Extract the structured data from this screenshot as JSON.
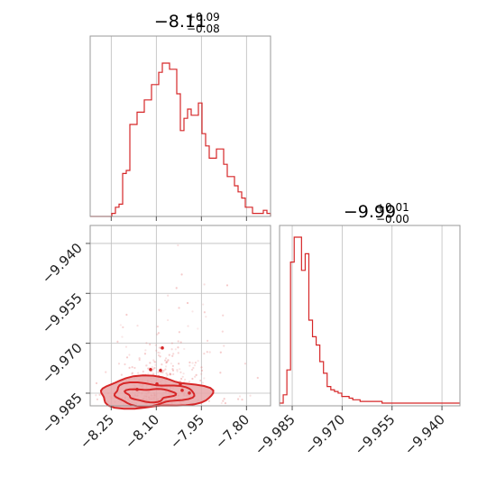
{
  "chart_data": [
    {
      "type": "histogram",
      "panel": "marginal-x",
      "title": {
        "median": "−8.11",
        "plus": "+0.09",
        "minus": "−0.08"
      },
      "xlim": [
        -8.32,
        -7.72
      ],
      "xticks": [
        -8.25,
        -8.1,
        -7.95,
        -7.8
      ],
      "grid": true,
      "bins": {
        "start": -8.32,
        "width": 0.012,
        "counts": [
          0,
          0,
          0,
          0,
          0,
          0,
          2,
          6,
          8,
          28,
          30,
          60,
          60,
          68,
          68,
          76,
          76,
          86,
          86,
          94,
          100,
          100,
          96,
          96,
          80,
          56,
          64,
          70,
          66,
          66,
          74,
          54,
          46,
          38,
          38,
          44,
          44,
          34,
          26,
          26,
          20,
          16,
          12,
          6,
          6,
          2,
          2,
          2,
          4,
          2
        ]
      }
    },
    {
      "type": "scatter",
      "panel": "joint",
      "xlim": [
        -8.32,
        -7.72
      ],
      "ylim": [
        -9.9888,
        -9.9346
      ],
      "xticks": [
        -8.25,
        -8.1,
        -7.95,
        -7.8
      ],
      "xticklabels": [
        "−8.25",
        "−8.10",
        "−7.95",
        "−7.80"
      ],
      "yticks": [
        -9.94,
        -9.955,
        -9.97,
        -9.985
      ],
      "yticklabels": [
        "−9.940",
        "−9.955",
        "−9.970",
        "−9.985"
      ],
      "grid": true,
      "contour_levels": 3,
      "density_peak": {
        "x": -8.11,
        "y": -9.9855
      }
    },
    {
      "type": "histogram",
      "panel": "marginal-y",
      "title": {
        "median": "−9.99",
        "plus": "+0.01",
        "minus": "−0.00"
      },
      "xlim": [
        -9.9888,
        -9.9346
      ],
      "xticks": [
        -9.985,
        -9.97,
        -9.955,
        -9.94
      ],
      "xticklabels": [
        "−9.985",
        "−9.970",
        "−9.955",
        "−9.940"
      ],
      "grid": true,
      "bins": {
        "start": -9.9888,
        "width": 0.0011,
        "counts": [
          0,
          5,
          20,
          85,
          100,
          100,
          80,
          90,
          50,
          40,
          35,
          25,
          18,
          10,
          8,
          7,
          6,
          4,
          4,
          3,
          2,
          2,
          1,
          1,
          1,
          1,
          1,
          1,
          0,
          0,
          0,
          0,
          0,
          0,
          0,
          0,
          0,
          0,
          0,
          0,
          0,
          0,
          0,
          0,
          0,
          0,
          0,
          0,
          0
        ]
      }
    }
  ]
}
